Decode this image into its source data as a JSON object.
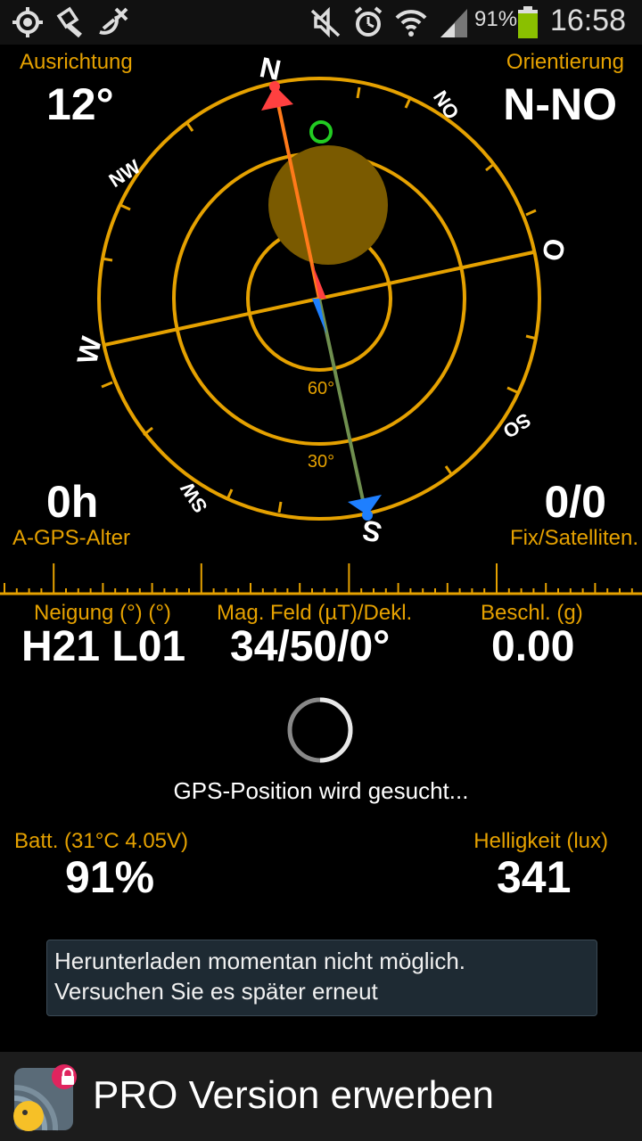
{
  "status_bar": {
    "battery_percent": "91%",
    "time": "16:58",
    "icons": [
      "gps-target-icon",
      "flashlight-icon",
      "satellite-off-icon",
      "mute-icon",
      "alarm-icon",
      "wifi-icon",
      "signal-icon",
      "battery-icon"
    ]
  },
  "compass": {
    "heading_label": "Ausrichtung",
    "heading_value": "12°",
    "orientation_label": "Orientierung",
    "orientation_value": "N-NO",
    "agps_value": "0h",
    "agps_label": "A-GPS-Alter",
    "fix_value": "0/0",
    "fix_label": "Fix/Satelliten.",
    "directions": {
      "n": "N",
      "no": "NO",
      "o": "O",
      "so": "SO",
      "s": "S",
      "sw": "SW",
      "w": "W",
      "nw": "NW"
    },
    "ring_60": "60°",
    "ring_30": "30°",
    "colors": {
      "ring": "#e5a100",
      "north_needle": "#ff4040",
      "south_needle": "#1e7fff",
      "sun": "#7a5a00",
      "target": "#22cc22"
    }
  },
  "sensors": {
    "tilt_label": "Neigung (°) (°)",
    "tilt_value": "H21 L01",
    "mag_label": "Mag. Feld (µT)/Dekl.",
    "mag_value": "34/50/0°",
    "accel_label": "Beschl. (g)",
    "accel_value": "0.00"
  },
  "gps_status": "GPS-Position wird gesucht...",
  "battery": {
    "label": "Batt. (31°C 4.05V)",
    "value": "91%"
  },
  "light": {
    "label": "Helligkeit (lux)",
    "value": "341"
  },
  "message": {
    "line1": "Herunterladen momentan nicht möglich.",
    "line2": "Versuchen Sie es später erneut"
  },
  "promo": {
    "label": "PRO Version erwerben"
  }
}
